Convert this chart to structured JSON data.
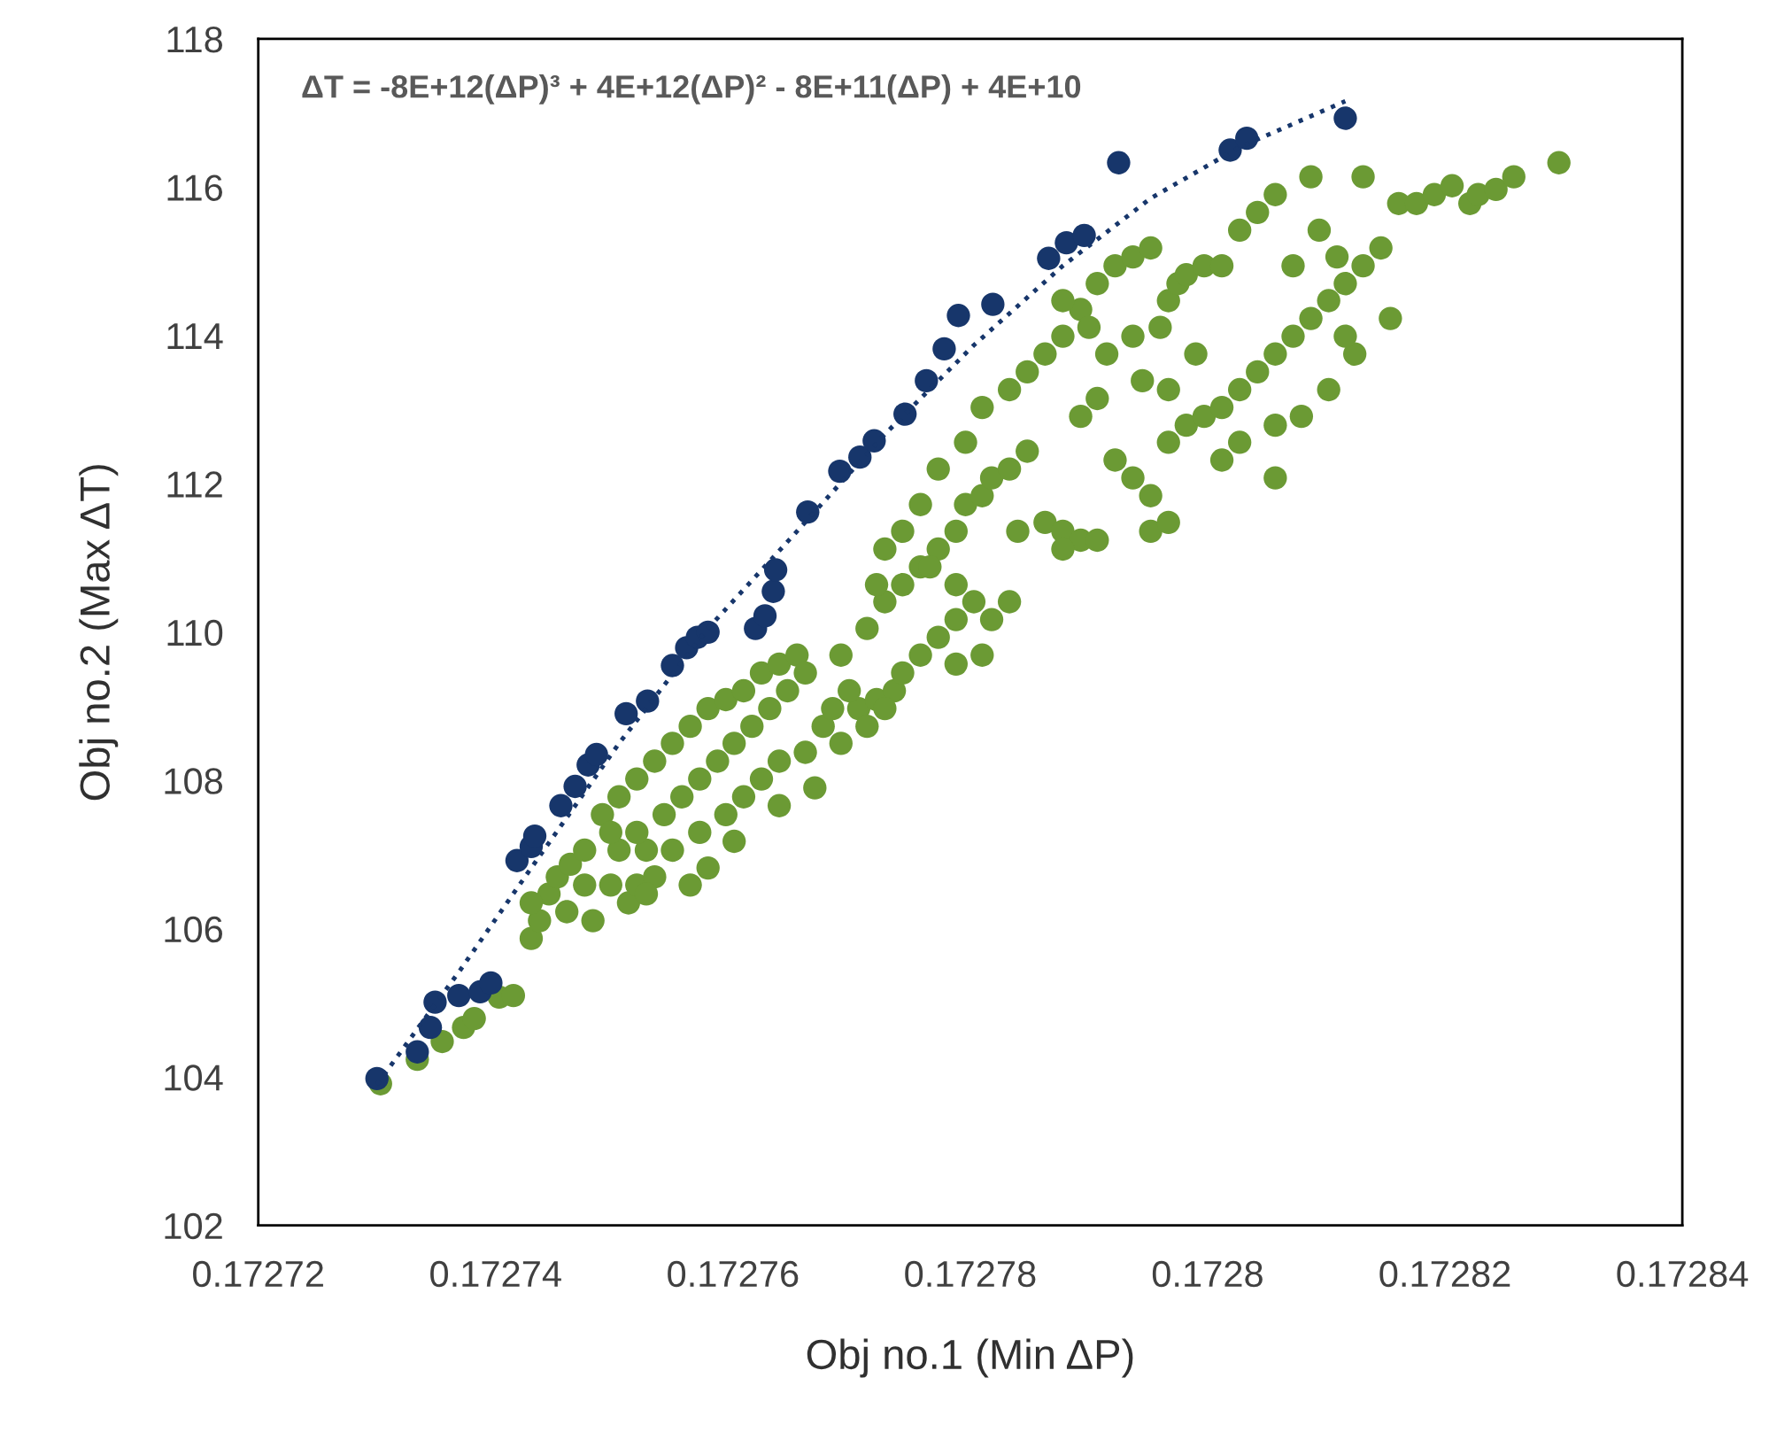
{
  "chart_data": {
    "type": "scatter",
    "xlabel": "Obj no.1 (Min ΔP)",
    "ylabel": "Obj no.2 (Max ΔT)",
    "annotations": [
      "ΔT = -8E+12(ΔP)³ + 4E+12(ΔP)² - 8E+11(ΔP) + 4E+10"
    ],
    "xlim": [
      0.17272,
      0.17284
    ],
    "xticks": [
      0.17272,
      0.17274,
      0.17276,
      0.17278,
      0.1728,
      0.17282,
      0.17284
    ],
    "ylim": [
      102,
      118
    ],
    "yticks": [
      102,
      104,
      106,
      108,
      110,
      112,
      114,
      116,
      118
    ],
    "grid": false,
    "legend": false,
    "series": [
      {
        "color": "#6b9a34",
        "marker": "circle",
        "x": [
          0.1727303,
          0.1727334,
          0.1727355,
          0.1727373,
          0.1727382,
          0.1727403,
          0.1727415,
          0.172743,
          0.1727437,
          0.1727445,
          0.1727452,
          0.1727463,
          0.1727475,
          0.172743,
          0.172746,
          0.1727482,
          0.1727497,
          0.1727512,
          0.1727519,
          0.1727534,
          0.1727527,
          0.172749,
          0.1727504,
          0.1727519,
          0.1727534,
          0.1727549,
          0.1727564,
          0.1727579,
          0.1727594,
          0.1727609,
          0.1727624,
          0.1727639,
          0.1727654,
          0.1727519,
          0.1727542,
          0.1727557,
          0.1727572,
          0.1727587,
          0.1727601,
          0.1727616,
          0.1727631,
          0.1727646,
          0.1727661,
          0.1727549,
          0.1727572,
          0.1727594,
          0.1727609,
          0.1727624,
          0.1727639,
          0.1727661,
          0.1727676,
          0.1727684,
          0.1727579,
          0.1727601,
          0.1727639,
          0.1727669,
          0.1727691,
          0.1727706,
          0.1727721,
          0.1727736,
          0.1727743,
          0.1727758,
          0.1727773,
          0.1727788,
          0.1727698,
          0.1727713,
          0.1727728,
          0.1727504,
          0.1727527,
          0.1727564,
          0.1727475,
          0.1727497,
          0.1727691,
          0.1727713,
          0.1727728,
          0.1727743,
          0.1727758,
          0.1727773,
          0.1727788,
          0.1727796,
          0.172781,
          0.1727818,
          0.1727833,
          0.1727848,
          0.1727721,
          0.1727743,
          0.1727766,
          0.1727788,
          0.1727803,
          0.1727818,
          0.1727833,
          0.1727758,
          0.1727773,
          0.1727796,
          0.172784,
          0.1727863,
          0.1727878,
          0.1727893,
          0.1727907,
          0.1727728,
          0.1727788,
          0.172781,
          0.172781,
          0.1727833,
          0.1727848,
          0.1727863,
          0.1727878,
          0.1727893,
          0.1727907,
          0.1727922,
          0.1727937,
          0.1727952,
          0.1727878,
          0.17279,
          0.1727915,
          0.1727937,
          0.172796,
          0.1727967,
          0.1727975,
          0.1727982,
          0.1727945,
          0.1727967,
          0.172799,
          0.1727893,
          0.1727907,
          0.1727997,
          0.1728012,
          0.1728027,
          0.1728042,
          0.1728057,
          0.1728087,
          0.1728094,
          0.1728109,
          0.1728072,
          0.1727922,
          0.1727937,
          0.1727952,
          0.1727967,
          0.1727982,
          0.1727997,
          0.1728012,
          0.1728027,
          0.1728042,
          0.1728057,
          0.1728072,
          0.1728087,
          0.1728102,
          0.1728116,
          0.1728131,
          0.1728146,
          0.1728012,
          0.1728027,
          0.1728057,
          0.1728079,
          0.1728102,
          0.1728124,
          0.1727952,
          0.1727967,
          0.1727878,
          0.1728057,
          0.1728131,
          0.1728161,
          0.1728176,
          0.1728191,
          0.1728206,
          0.1728221,
          0.1728228,
          0.1728243,
          0.1728258,
          0.1728296,
          0.1728116,
          0.1728154
        ],
        "values": [
          103.91,
          104.24,
          104.48,
          104.67,
          104.79,
          105.08,
          105.1,
          105.87,
          106.11,
          106.47,
          106.7,
          106.87,
          107.06,
          106.35,
          106.23,
          106.11,
          106.59,
          106.35,
          106.59,
          106.7,
          107.06,
          107.54,
          107.78,
          108.02,
          108.26,
          108.5,
          108.73,
          108.97,
          109.09,
          109.21,
          109.45,
          109.57,
          109.69,
          107.3,
          107.54,
          107.78,
          108.02,
          108.26,
          108.5,
          108.73,
          108.97,
          109.21,
          109.45,
          107.06,
          107.3,
          107.54,
          107.78,
          108.02,
          108.26,
          108.38,
          108.73,
          108.97,
          106.82,
          107.18,
          107.66,
          107.9,
          108.5,
          108.97,
          109.09,
          109.21,
          109.45,
          109.69,
          109.93,
          110.17,
          109.21,
          108.73,
          108.97,
          107.06,
          106.47,
          106.59,
          106.59,
          107.3,
          109.69,
          110.05,
          110.41,
          110.64,
          110.88,
          111.12,
          111.36,
          111.72,
          111.84,
          112.08,
          112.2,
          112.44,
          110.64,
          111.36,
          110.88,
          110.64,
          110.41,
          110.17,
          110.41,
          111.72,
          112.2,
          112.56,
          111.36,
          111.48,
          111.36,
          111.24,
          111.24,
          111.12,
          109.57,
          109.69,
          113.03,
          113.27,
          113.51,
          113.75,
          113.99,
          114.35,
          114.7,
          114.94,
          115.06,
          115.18,
          114.47,
          114.11,
          113.75,
          113.99,
          114.11,
          114.47,
          114.7,
          114.82,
          113.39,
          113.27,
          113.75,
          112.91,
          113.15,
          114.94,
          114.94,
          115.42,
          115.66,
          115.9,
          116.14,
          115.42,
          115.06,
          114.94,
          112.32,
          112.08,
          111.84,
          112.56,
          112.79,
          112.91,
          113.03,
          113.27,
          113.51,
          113.75,
          113.99,
          114.23,
          114.47,
          114.7,
          114.94,
          115.18,
          112.32,
          112.56,
          112.79,
          112.91,
          113.27,
          113.75,
          111.36,
          111.48,
          111.12,
          112.08,
          116.14,
          115.78,
          115.78,
          115.9,
          116.02,
          115.78,
          115.9,
          115.97,
          116.14,
          116.33,
          113.99,
          114.23
        ]
      },
      {
        "color": "#17366b",
        "marker": "circle",
        "x": [
          0.17273,
          0.1727334,
          0.1727345,
          0.1727349,
          0.1727369,
          0.1727387,
          0.1727396,
          0.1727418,
          0.172743,
          0.1727433,
          0.1727455,
          0.1727467,
          0.1727478,
          0.1727485,
          0.172751,
          0.1727528,
          0.1727549,
          0.1727561,
          0.172757,
          0.1727579,
          0.1727619,
          0.1727627,
          0.1727634,
          0.1727636,
          0.1727663,
          0.172769,
          0.1727707,
          0.1727719,
          0.1727745,
          0.1727763,
          0.1727778,
          0.172779,
          0.1727819,
          0.1727866,
          0.1727881,
          0.1727896,
          0.1727925,
          0.1728019,
          0.1728033,
          0.1728116
        ],
        "values": [
          103.98,
          104.34,
          104.67,
          105.01,
          105.1,
          105.15,
          105.27,
          106.92,
          107.11,
          107.25,
          107.66,
          107.92,
          108.21,
          108.35,
          108.9,
          109.07,
          109.55,
          109.79,
          109.93,
          110.0,
          110.05,
          110.22,
          110.55,
          110.84,
          111.62,
          112.17,
          112.36,
          112.58,
          112.94,
          113.39,
          113.82,
          114.27,
          114.42,
          115.04,
          115.25,
          115.35,
          116.33,
          116.5,
          116.66,
          116.93
        ]
      },
      {
        "type": "line",
        "color": "#17366b",
        "line_style": "dotted",
        "marker": "none",
        "x": [
          0.17273,
          0.172737,
          0.172743,
          0.1727504,
          0.1727579,
          0.1727654,
          0.1727728,
          0.1727803,
          0.1727878,
          0.1727952,
          0.1728027,
          0.1728116
        ],
        "values": [
          103.9,
          105.44,
          106.82,
          108.5,
          110.05,
          111.36,
          112.67,
          113.87,
          114.94,
          115.85,
          116.54,
          117.16
        ]
      }
    ]
  }
}
